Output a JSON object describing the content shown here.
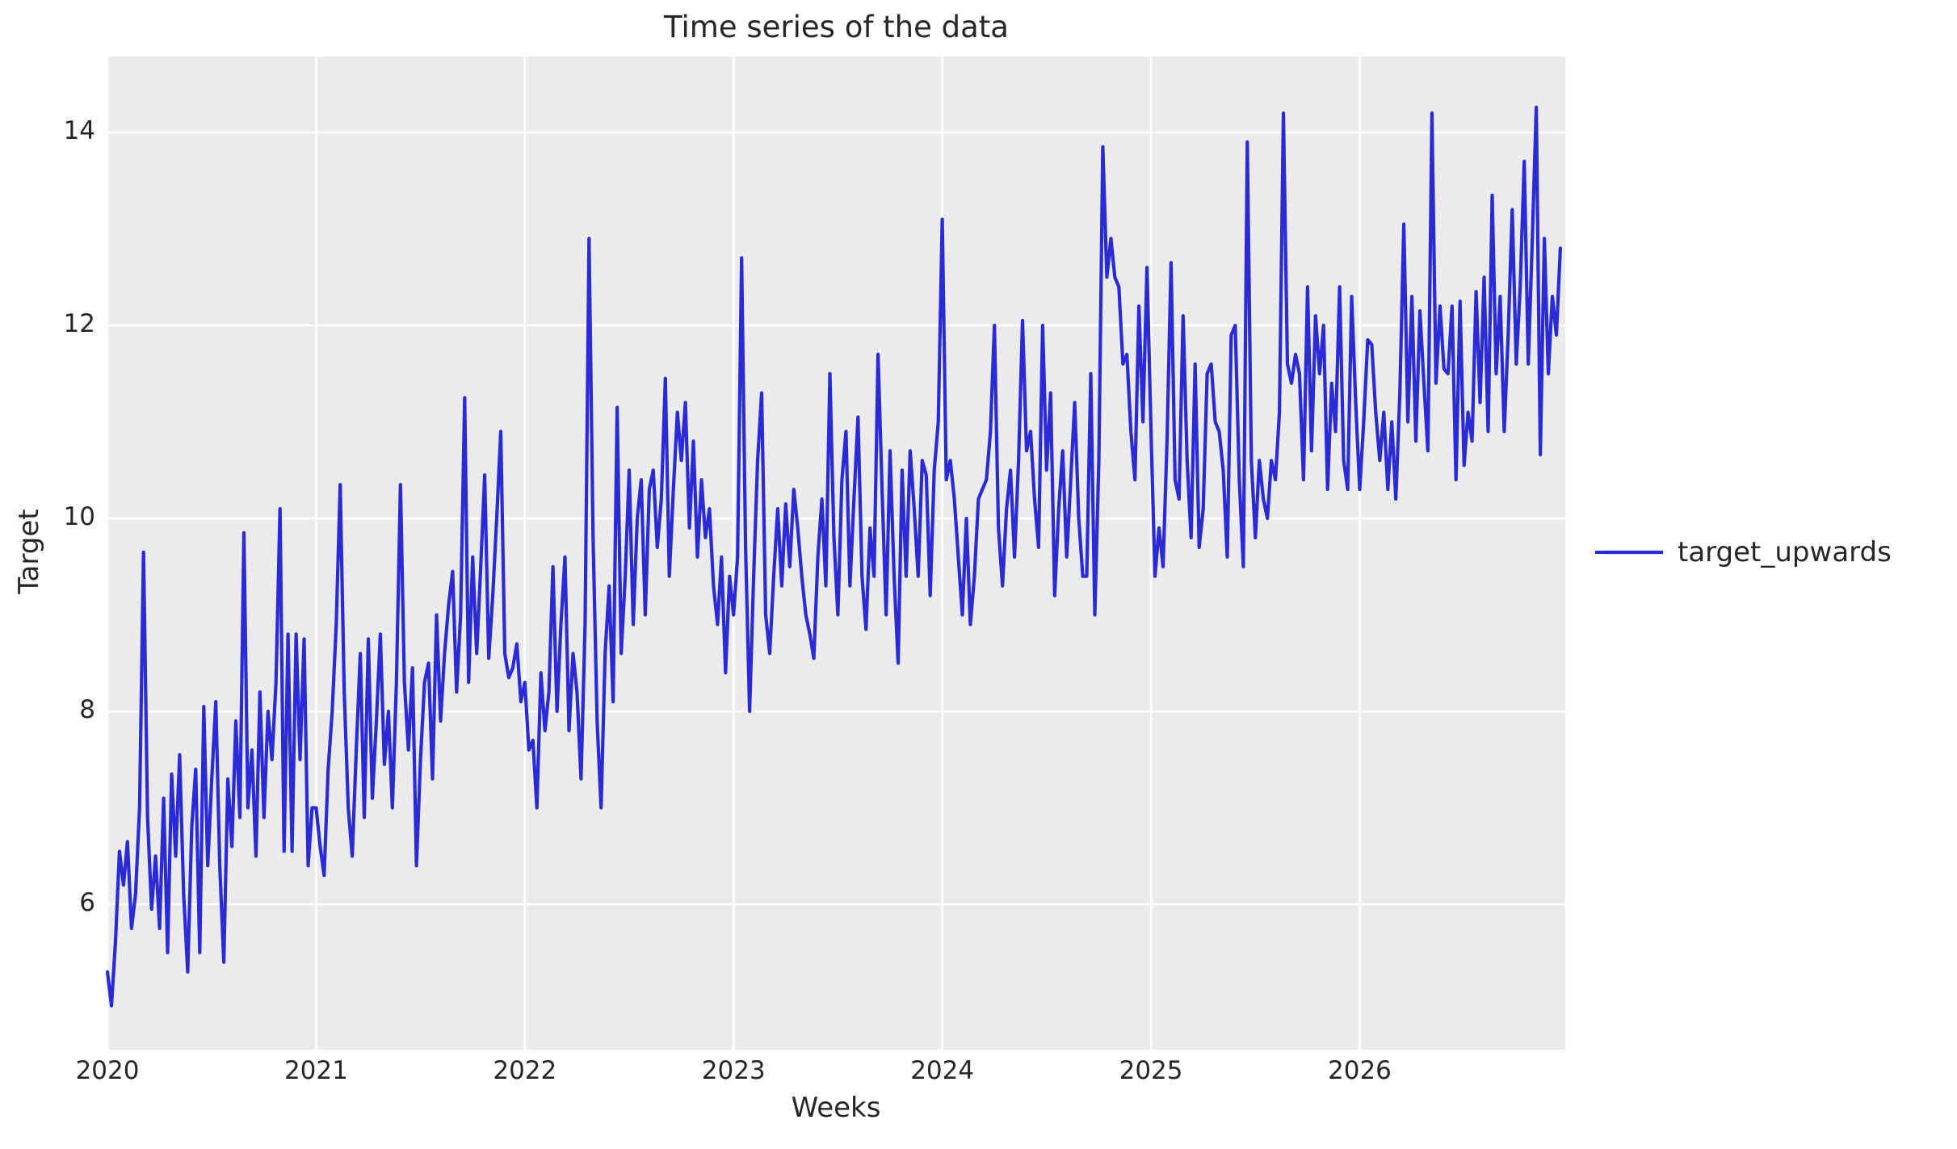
{
  "figure": {
    "title": "Time series of the data",
    "x_axis_label": "Weeks",
    "y_axis_label": "Target"
  },
  "legend": {
    "series_label": "target_upwards"
  },
  "colors": {
    "line": "#2b2bd5",
    "plot_background": "#ebebeb",
    "grid": "#ffffff",
    "text": "#262626",
    "figure_background": "#ffffff"
  },
  "chart_data": {
    "type": "line",
    "title": "Time series of the data",
    "xlabel": "Weeks",
    "ylabel": "Target",
    "series": [
      {
        "name": "target_upwards",
        "sampling": "weekly, starting 2020, 363 points ending late 2026",
        "values": [
          5.3,
          4.95,
          5.6,
          6.55,
          6.2,
          6.65,
          5.75,
          6.1,
          7.0,
          9.65,
          6.9,
          5.95,
          6.5,
          5.75,
          7.1,
          5.5,
          7.35,
          6.5,
          7.55,
          6.1,
          5.3,
          6.8,
          7.4,
          5.5,
          8.05,
          6.4,
          7.3,
          8.1,
          6.4,
          5.4,
          7.3,
          6.6,
          7.9,
          6.9,
          9.85,
          7.0,
          7.6,
          6.5,
          8.2,
          6.9,
          8.0,
          7.5,
          8.3,
          10.1,
          6.55,
          8.8,
          6.55,
          8.8,
          7.5,
          8.75,
          6.4,
          7.0,
          7.0,
          6.6,
          6.3,
          7.4,
          8.0,
          8.9,
          10.35,
          8.2,
          7.0,
          6.5,
          7.6,
          8.6,
          6.9,
          8.75,
          7.1,
          7.9,
          8.8,
          7.45,
          8.0,
          7.0,
          8.3,
          10.35,
          8.3,
          7.6,
          8.45,
          6.4,
          7.5,
          8.3,
          8.5,
          7.3,
          9.0,
          7.9,
          8.6,
          9.1,
          9.45,
          8.2,
          9.0,
          11.25,
          8.3,
          9.6,
          8.6,
          9.5,
          10.45,
          8.55,
          9.2,
          10.0,
          10.9,
          8.6,
          8.35,
          8.45,
          8.7,
          8.1,
          8.3,
          7.6,
          7.7,
          7.0,
          8.4,
          7.8,
          8.2,
          9.5,
          8.0,
          8.9,
          9.6,
          7.8,
          8.6,
          8.2,
          7.3,
          8.9,
          12.9,
          9.8,
          7.9,
          7.0,
          8.6,
          9.3,
          8.1,
          11.15,
          8.6,
          9.4,
          10.5,
          8.9,
          10.0,
          10.4,
          9.0,
          10.3,
          10.5,
          9.7,
          10.2,
          11.45,
          9.4,
          10.3,
          11.1,
          10.6,
          11.2,
          9.9,
          10.8,
          9.6,
          10.4,
          9.8,
          10.1,
          9.3,
          8.9,
          9.6,
          8.4,
          9.4,
          9.0,
          9.6,
          12.7,
          9.7,
          8.0,
          9.4,
          10.6,
          11.3,
          9.0,
          8.6,
          9.4,
          10.1,
          9.3,
          10.15,
          9.5,
          10.3,
          9.9,
          9.4,
          9.0,
          8.8,
          8.55,
          9.6,
          10.2,
          9.3,
          11.5,
          9.8,
          9.0,
          10.4,
          10.9,
          9.3,
          10.2,
          11.05,
          9.4,
          8.85,
          9.9,
          9.4,
          11.7,
          10.3,
          9.0,
          10.7,
          9.4,
          8.5,
          10.5,
          9.4,
          10.7,
          10.1,
          9.4,
          10.6,
          10.45,
          9.2,
          10.5,
          11.0,
          13.1,
          10.4,
          10.6,
          10.2,
          9.6,
          9.0,
          10.0,
          8.9,
          9.4,
          10.2,
          10.3,
          10.4,
          10.9,
          12.0,
          9.9,
          9.3,
          10.1,
          10.5,
          9.6,
          10.6,
          12.05,
          10.7,
          10.9,
          10.2,
          9.7,
          12.0,
          10.5,
          11.3,
          9.2,
          10.1,
          10.7,
          9.6,
          10.4,
          11.2,
          10.0,
          9.4,
          9.4,
          11.5,
          9.0,
          10.6,
          13.85,
          12.5,
          12.9,
          12.5,
          12.4,
          11.6,
          11.7,
          10.9,
          10.4,
          12.2,
          11.0,
          12.6,
          10.9,
          9.4,
          9.9,
          9.5,
          10.8,
          12.65,
          10.4,
          10.2,
          12.1,
          10.6,
          9.8,
          11.6,
          9.7,
          10.1,
          11.5,
          11.6,
          11.0,
          10.9,
          10.5,
          9.6,
          11.9,
          12.0,
          10.4,
          9.5,
          13.9,
          10.6,
          9.8,
          10.6,
          10.2,
          10.0,
          10.6,
          10.4,
          11.1,
          14.2,
          11.6,
          11.4,
          11.7,
          11.5,
          10.4,
          12.4,
          10.7,
          12.1,
          11.5,
          12.0,
          10.3,
          11.4,
          10.9,
          12.4,
          10.6,
          10.3,
          12.3,
          11.2,
          10.3,
          11.0,
          11.85,
          11.8,
          11.1,
          10.6,
          11.1,
          10.3,
          11.0,
          10.2,
          11.3,
          13.05,
          11.0,
          12.3,
          10.8,
          12.15,
          11.4,
          10.7,
          14.2,
          11.4,
          12.2,
          11.55,
          11.5,
          12.2,
          10.4,
          12.25,
          10.55,
          11.1,
          10.8,
          12.35,
          11.2,
          12.5,
          10.9,
          13.35,
          11.5,
          12.3,
          10.9,
          11.9,
          13.2,
          11.6,
          12.4,
          13.7,
          11.6,
          12.9,
          14.26,
          10.66,
          12.9,
          11.5,
          12.3,
          11.9,
          12.8
        ]
      }
    ],
    "x_tick_labels": [
      "2020",
      "2021",
      "2022",
      "2023",
      "2024",
      "2025",
      "2026"
    ],
    "y_ticks": [
      6,
      8,
      10,
      12,
      14
    ],
    "points_per_year": 52,
    "xlim_years": [
      2020,
      2026.985
    ],
    "ylim": [
      4.49,
      14.79
    ],
    "grid": true,
    "legend_position": "center right outside"
  }
}
